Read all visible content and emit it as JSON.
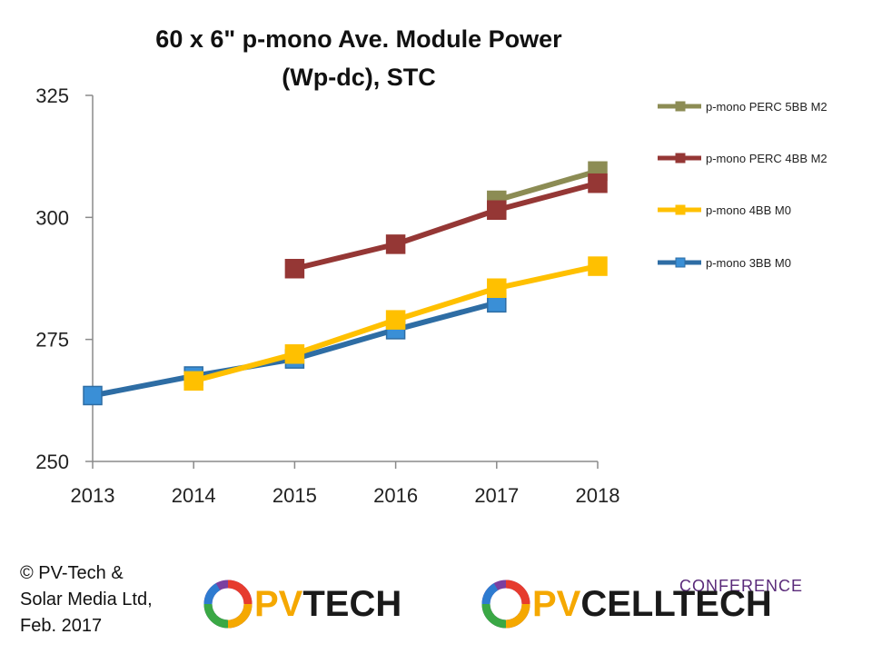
{
  "chart_data": {
    "type": "line",
    "title_lines": [
      "60 x 6\" p-mono  Ave. Module Power",
      "(Wp-dc), STC"
    ],
    "xlabel": "",
    "ylabel": "",
    "x": [
      "2013",
      "2014",
      "2015",
      "2016",
      "2017",
      "2018"
    ],
    "ylim": [
      250,
      325
    ],
    "yticks": [
      "250",
      "275",
      "300",
      "325"
    ],
    "grid": false,
    "legend_position": "right",
    "series": [
      {
        "name": "p-mono PERC 5BB M2",
        "color": "#8c8c54",
        "values": [
          null,
          null,
          null,
          null,
          303.5,
          309.5
        ]
      },
      {
        "name": "p-mono PERC 4BB M2",
        "color": "#953735",
        "values": [
          null,
          null,
          289.5,
          294.5,
          301.5,
          307
        ]
      },
      {
        "name": "p-mono 3BB M0",
        "color": "#2e6da4",
        "marker_color": "#3a8fd6",
        "values": [
          263.5,
          267.5,
          271,
          277,
          282.5,
          null
        ]
      },
      {
        "name": "p-mono 4BB M0",
        "color": "#ffc000",
        "values": [
          null,
          266.5,
          272,
          279,
          285.5,
          290
        ]
      }
    ],
    "legend_order": [
      0,
      1,
      3,
      2
    ]
  },
  "footer": {
    "copyright_lines": [
      "© PV-Tech &",
      "Solar Media Ltd,",
      "Feb. 2017"
    ]
  },
  "logos": {
    "pvtech": {
      "pv": "PV",
      "rest": "TECH"
    },
    "pvcelltech": {
      "pv": "PV",
      "rest": "CELLTECH",
      "conference": "CONFERENCE"
    }
  },
  "colors": {
    "legend_marker_4bb_m0": "#ffc000",
    "accent_orange": "#f5a800"
  }
}
